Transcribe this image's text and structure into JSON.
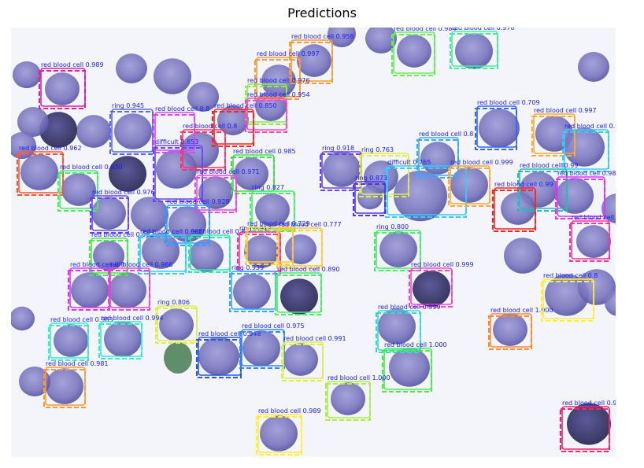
{
  "title": "Predictions",
  "colors": {
    "label_text": "#1a1aff",
    "background": "#f4f5fb",
    "cell": "#7f7cc4",
    "dark_cell": "#3b3a7e"
  },
  "detections": [
    {
      "label": "red blood cell 0.989",
      "cls": "red blood cell",
      "score": 0.989,
      "color": "#e020a0"
    },
    {
      "label": "red blood cell 0.958",
      "cls": "red blood cell",
      "score": 0.958,
      "color": "#ff9933"
    },
    {
      "label": "red blood cell 0.997",
      "cls": "red blood cell",
      "score": 0.997,
      "color": "#ff9933"
    },
    {
      "label": "red blood cell 0.976",
      "cls": "red blood cell",
      "score": 0.976,
      "color": "#88ee44"
    },
    {
      "label": "red blood cell 0.954",
      "cls": "red blood cell",
      "score": 0.954,
      "color": "#ff44cc"
    },
    {
      "label": "red blood cell 0.984",
      "cls": "red blood cell",
      "score": 0.984,
      "color": "#66ee55"
    },
    {
      "label": "red blood cell 0.978",
      "cls": "red blood cell",
      "score": 0.978,
      "color": "#44ee99"
    },
    {
      "label": "red blood cell 0.709",
      "cls": "red blood cell",
      "score": 0.709,
      "color": "#3366ff"
    },
    {
      "label": "red blood cell 0.997",
      "cls": "red blood cell",
      "score": 0.997,
      "color": "#ffaa33"
    },
    {
      "label": "red blood cell 0.993",
      "cls": "red blood cell",
      "score": 0.993,
      "color": "#33ccff"
    },
    {
      "label": "ring 0.945",
      "cls": "ring",
      "score": 0.945,
      "color": "#5566ff"
    },
    {
      "label": "red blood cell 0.850",
      "cls": "red blood cell",
      "score": 0.85,
      "color": "#ff2222"
    },
    {
      "label": "red blood cell 0.8",
      "cls": "red blood cell",
      "score": 0.8,
      "color": "#dd44ff"
    },
    {
      "label": "red blood cell 0.8",
      "cls": "red blood cell",
      "score": 0.8,
      "color": "#ff3366"
    },
    {
      "label": "red blood cell 0.962",
      "cls": "red blood cell",
      "score": 0.962,
      "color": "#ff5533"
    },
    {
      "label": "red blood cell 0.930",
      "cls": "red blood cell",
      "score": 0.93,
      "color": "#44ee66"
    },
    {
      "label": "difficult 0.853",
      "cls": "difficult",
      "score": 0.853,
      "color": "#6644ff"
    },
    {
      "label": "red blood cell 0.985",
      "cls": "red blood cell",
      "score": 0.985,
      "color": "#44dd44"
    },
    {
      "label": "red blood cell 0.971",
      "cls": "red blood cell",
      "score": 0.971,
      "color": "#ee44ee"
    },
    {
      "label": "ring 0.918",
      "cls": "ring",
      "score": 0.918,
      "color": "#6644ee"
    },
    {
      "label": "ring 0.763",
      "cls": "ring",
      "score": 0.763,
      "color": "#ddee44"
    },
    {
      "label": "difficult 0.765",
      "cls": "difficult",
      "score": 0.765,
      "color": "#33ccff"
    },
    {
      "label": "red blood cell 0.8",
      "cls": "red blood cell",
      "score": 0.8,
      "color": "#33aaff"
    },
    {
      "label": "red blood cell 0.999",
      "cls": "red blood cell",
      "score": 0.999,
      "color": "#ffaa33"
    },
    {
      "label": "red blood cell 0.99",
      "cls": "red blood cell",
      "score": 0.99,
      "color": "#22bbbb"
    },
    {
      "label": "red blood cell 0.984",
      "cls": "red blood cell",
      "score": 0.984,
      "color": "#dd33ff"
    },
    {
      "label": "ring 0.873",
      "cls": "ring",
      "score": 0.873,
      "color": "#5533ee"
    },
    {
      "label": "ring 0.827",
      "cls": "ring",
      "score": 0.827,
      "color": "#44ee66"
    },
    {
      "label": "red blood cell 0.976",
      "cls": "red blood cell",
      "score": 0.976,
      "color": "#6644ff"
    },
    {
      "label": "red blood cell 0.928",
      "cls": "red blood cell",
      "score": 0.928,
      "color": "#3399ff"
    },
    {
      "label": "red blood cell 0.99",
      "cls": "red blood cell",
      "score": 0.99,
      "color": "#ff2222"
    },
    {
      "label": "red blood cell 0.903",
      "cls": "red blood cell",
      "score": 0.903,
      "color": "#ff3399"
    },
    {
      "label": "ring 0.912",
      "cls": "ring",
      "score": 0.912,
      "color": "#ff3399"
    },
    {
      "label": "red blood cell 0.777",
      "cls": "red blood cell",
      "score": 0.777,
      "color": "#ffcc33"
    },
    {
      "label": "red blood cell 0.729",
      "cls": "red blood cell",
      "score": 0.729,
      "color": "#ffcc33"
    },
    {
      "label": "ring 0.800",
      "cls": "ring",
      "score": 0.8,
      "color": "#44ee66"
    },
    {
      "label": "red blood cell 0.962",
      "cls": "red blood cell",
      "score": 0.962,
      "color": "#44ee44"
    },
    {
      "label": "red blood cell 0.968",
      "cls": "red blood cell",
      "score": 0.968,
      "color": "#33ccff"
    },
    {
      "label": "red blood cell 0.8",
      "cls": "red blood cell",
      "score": 0.8,
      "color": "#22eeaa"
    },
    {
      "label": "red blood cell 0.8",
      "cls": "red blood cell",
      "score": 0.8,
      "color": "#dd33ff"
    },
    {
      "label": "red blood cell 0.966",
      "cls": "red blood cell",
      "score": 0.966,
      "color": "#ee44cc"
    },
    {
      "label": "ring 0.939",
      "cls": "ring",
      "score": 0.939,
      "color": "#33aaff"
    },
    {
      "label": "red blood cell 0.890",
      "cls": "red blood cell",
      "score": 0.89,
      "color": "#44ee66"
    },
    {
      "label": "red blood cell 0.999",
      "cls": "red blood cell",
      "score": 0.999,
      "color": "#ff44cc"
    },
    {
      "label": "red blood cell 0.999",
      "cls": "red blood cell",
      "score": 0.999,
      "color": "#33ddcc"
    },
    {
      "label": "red blood cell 1.000",
      "cls": "red blood cell",
      "score": 1.0,
      "color": "#ff8833"
    },
    {
      "label": "red blood cell 0.8",
      "cls": "red blood cell",
      "score": 0.8,
      "color": "#ffee33"
    },
    {
      "label": "ring 0.806",
      "cls": "ring",
      "score": 0.806,
      "color": "#ddee44"
    },
    {
      "label": "red blood cell 0.983",
      "cls": "red blood cell",
      "score": 0.983,
      "color": "#33eecc"
    },
    {
      "label": "red blood cell 0.994",
      "cls": "red blood cell",
      "score": 0.994,
      "color": "#33eecc"
    },
    {
      "label": "red blood cell 0.948",
      "cls": "red blood cell",
      "score": 0.948,
      "color": "#2255ff"
    },
    {
      "label": "red blood cell 0.975",
      "cls": "red blood cell",
      "score": 0.975,
      "color": "#3388ff"
    },
    {
      "label": "red blood cell 0.991",
      "cls": "red blood cell",
      "score": 0.991,
      "color": "#ddee44"
    },
    {
      "label": "red blood cell 1.000",
      "cls": "red blood cell",
      "score": 1.0,
      "color": "#44ee44"
    },
    {
      "label": "red blood cell 0.981",
      "cls": "red blood cell",
      "score": 0.981,
      "color": "#ff9933"
    },
    {
      "label": "red blood cell 1.000",
      "cls": "red blood cell",
      "score": 1.0,
      "color": "#aaee44"
    },
    {
      "label": "red blood cell 0.989",
      "cls": "red blood cell",
      "score": 0.989,
      "color": "#ffee33"
    },
    {
      "label": "red blood cell 0.992",
      "cls": "red blood cell",
      "score": 0.992,
      "color": "#ff2266"
    }
  ]
}
